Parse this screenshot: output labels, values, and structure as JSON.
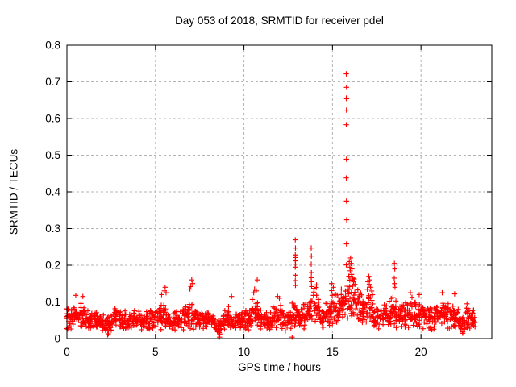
{
  "page": {
    "background": "#ffffff"
  },
  "chart_data": {
    "type": "scatter",
    "title": "Day 053 of 2018, SRMTID for receiver pdel",
    "xlabel": "GPS time / hours",
    "ylabel": "SRMTID / TECUs",
    "xlim": [
      0,
      24
    ],
    "ylim": [
      0,
      0.8
    ],
    "xticks": [
      "0",
      "5",
      "10",
      "15",
      "20"
    ],
    "xtick_values": [
      0,
      5,
      10,
      15,
      20
    ],
    "yticks": [
      "0",
      "0.1",
      "0.2",
      "0.3",
      "0.4",
      "0.5",
      "0.6",
      "0.7",
      "0.8"
    ],
    "ytick_values": [
      0,
      0.1,
      0.2,
      0.3,
      0.4,
      0.5,
      0.6,
      0.7,
      0.8
    ],
    "grid": true,
    "grid_style": "dashed",
    "legend": "none",
    "marker": {
      "symbol": "plus",
      "color": "#ff0000",
      "size": 7
    },
    "grid_color": "#b3b3b3",
    "border_color": "#000000",
    "series_name": "SRMTID",
    "x_data_range": [
      0,
      23.05
    ],
    "band_bins": [
      [
        0.0,
        0.055,
        0.035
      ],
      [
        0.2,
        0.055,
        0.035
      ],
      [
        0.4,
        0.06,
        0.04
      ],
      [
        0.6,
        0.06,
        0.035
      ],
      [
        0.8,
        0.065,
        0.045
      ],
      [
        1.0,
        0.055,
        0.035
      ],
      [
        1.2,
        0.05,
        0.03
      ],
      [
        1.4,
        0.05,
        0.03
      ],
      [
        1.6,
        0.05,
        0.03
      ],
      [
        1.8,
        0.05,
        0.03
      ],
      [
        2.0,
        0.045,
        0.03
      ],
      [
        2.2,
        0.035,
        0.03
      ],
      [
        2.4,
        0.04,
        0.03
      ],
      [
        2.6,
        0.05,
        0.028
      ],
      [
        2.8,
        0.055,
        0.03
      ],
      [
        3.0,
        0.05,
        0.028
      ],
      [
        3.2,
        0.05,
        0.028
      ],
      [
        3.4,
        0.048,
        0.028
      ],
      [
        3.6,
        0.05,
        0.028
      ],
      [
        3.8,
        0.052,
        0.03
      ],
      [
        4.0,
        0.05,
        0.028
      ],
      [
        4.2,
        0.048,
        0.028
      ],
      [
        4.4,
        0.05,
        0.028
      ],
      [
        4.6,
        0.05,
        0.03
      ],
      [
        4.8,
        0.052,
        0.03
      ],
      [
        5.0,
        0.055,
        0.032
      ],
      [
        5.2,
        0.06,
        0.038
      ],
      [
        5.4,
        0.07,
        0.05
      ],
      [
        5.6,
        0.065,
        0.045
      ],
      [
        5.8,
        0.05,
        0.03
      ],
      [
        6.0,
        0.048,
        0.03
      ],
      [
        6.2,
        0.05,
        0.03
      ],
      [
        6.4,
        0.05,
        0.03
      ],
      [
        6.6,
        0.055,
        0.033
      ],
      [
        6.8,
        0.06,
        0.04
      ],
      [
        7.0,
        0.075,
        0.055
      ],
      [
        7.2,
        0.065,
        0.045
      ],
      [
        7.4,
        0.05,
        0.03
      ],
      [
        7.6,
        0.05,
        0.03
      ],
      [
        7.8,
        0.048,
        0.03
      ],
      [
        8.0,
        0.045,
        0.03
      ],
      [
        8.2,
        0.042,
        0.03
      ],
      [
        8.4,
        0.035,
        0.028
      ],
      [
        8.6,
        0.035,
        0.03
      ],
      [
        8.8,
        0.04,
        0.03
      ],
      [
        9.0,
        0.05,
        0.03
      ],
      [
        9.2,
        0.055,
        0.033
      ],
      [
        9.4,
        0.05,
        0.03
      ],
      [
        9.6,
        0.05,
        0.03
      ],
      [
        9.8,
        0.05,
        0.03
      ],
      [
        10.0,
        0.052,
        0.032
      ],
      [
        10.2,
        0.055,
        0.035
      ],
      [
        10.4,
        0.065,
        0.045
      ],
      [
        10.6,
        0.075,
        0.05
      ],
      [
        10.8,
        0.065,
        0.045
      ],
      [
        11.0,
        0.05,
        0.032
      ],
      [
        11.2,
        0.05,
        0.03
      ],
      [
        11.4,
        0.05,
        0.03
      ],
      [
        11.6,
        0.055,
        0.033
      ],
      [
        11.8,
        0.065,
        0.042
      ],
      [
        12.0,
        0.06,
        0.04
      ],
      [
        12.2,
        0.05,
        0.032
      ],
      [
        12.4,
        0.05,
        0.03
      ],
      [
        12.6,
        0.055,
        0.035
      ],
      [
        12.8,
        0.07,
        0.05
      ],
      [
        13.0,
        0.06,
        0.038
      ],
      [
        13.2,
        0.06,
        0.035
      ],
      [
        13.4,
        0.065,
        0.04
      ],
      [
        13.6,
        0.075,
        0.05
      ],
      [
        13.8,
        0.09,
        0.06
      ],
      [
        14.0,
        0.09,
        0.06
      ],
      [
        14.2,
        0.075,
        0.05
      ],
      [
        14.4,
        0.055,
        0.035
      ],
      [
        14.6,
        0.06,
        0.04
      ],
      [
        14.8,
        0.07,
        0.045
      ],
      [
        15.0,
        0.08,
        0.055
      ],
      [
        15.2,
        0.08,
        0.05
      ],
      [
        15.4,
        0.085,
        0.05
      ],
      [
        15.6,
        0.09,
        0.05
      ],
      [
        15.8,
        0.1,
        0.07
      ],
      [
        16.0,
        0.12,
        0.08
      ],
      [
        16.2,
        0.11,
        0.07
      ],
      [
        16.4,
        0.09,
        0.055
      ],
      [
        16.6,
        0.085,
        0.05
      ],
      [
        16.8,
        0.09,
        0.055
      ],
      [
        17.0,
        0.095,
        0.06
      ],
      [
        17.2,
        0.085,
        0.055
      ],
      [
        17.4,
        0.065,
        0.042
      ],
      [
        17.6,
        0.055,
        0.035
      ],
      [
        17.8,
        0.055,
        0.035
      ],
      [
        18.0,
        0.06,
        0.038
      ],
      [
        18.2,
        0.065,
        0.04
      ],
      [
        18.4,
        0.08,
        0.05
      ],
      [
        18.6,
        0.075,
        0.048
      ],
      [
        18.8,
        0.06,
        0.04
      ],
      [
        19.0,
        0.06,
        0.038
      ],
      [
        19.2,
        0.065,
        0.04
      ],
      [
        19.4,
        0.07,
        0.045
      ],
      [
        19.6,
        0.065,
        0.042
      ],
      [
        19.8,
        0.068,
        0.045
      ],
      [
        20.0,
        0.065,
        0.042
      ],
      [
        20.2,
        0.06,
        0.04
      ],
      [
        20.4,
        0.055,
        0.035
      ],
      [
        20.6,
        0.055,
        0.035
      ],
      [
        20.8,
        0.06,
        0.038
      ],
      [
        21.0,
        0.06,
        0.04
      ],
      [
        21.2,
        0.07,
        0.048
      ],
      [
        21.4,
        0.065,
        0.042
      ],
      [
        21.6,
        0.062,
        0.04
      ],
      [
        21.8,
        0.065,
        0.045
      ],
      [
        22.0,
        0.06,
        0.04
      ],
      [
        22.2,
        0.045,
        0.03
      ],
      [
        22.4,
        0.04,
        0.03
      ],
      [
        22.6,
        0.055,
        0.038
      ],
      [
        22.8,
        0.06,
        0.04
      ],
      [
        23.0,
        0.055,
        0.035
      ]
    ],
    "outliers": [
      [
        15.78,
        0.722
      ],
      [
        15.79,
        0.685
      ],
      [
        15.78,
        0.656
      ],
      [
        15.8,
        0.654
      ],
      [
        15.79,
        0.623
      ],
      [
        15.78,
        0.583
      ],
      [
        15.79,
        0.489
      ],
      [
        15.78,
        0.438
      ],
      [
        15.79,
        0.375
      ],
      [
        15.8,
        0.324
      ],
      [
        15.79,
        0.258
      ],
      [
        15.78,
        0.201
      ],
      [
        12.9,
        0.269
      ],
      [
        12.91,
        0.247
      ],
      [
        12.9,
        0.228
      ],
      [
        12.91,
        0.221
      ],
      [
        12.9,
        0.212
      ],
      [
        12.91,
        0.203
      ],
      [
        12.9,
        0.195
      ],
      [
        12.91,
        0.173
      ],
      [
        12.9,
        0.158
      ],
      [
        12.91,
        0.145
      ],
      [
        13.8,
        0.247
      ],
      [
        13.81,
        0.225
      ],
      [
        13.8,
        0.203
      ],
      [
        13.81,
        0.18
      ],
      [
        13.8,
        0.166
      ],
      [
        13.81,
        0.155
      ],
      [
        13.82,
        0.142
      ],
      [
        16.02,
        0.22
      ],
      [
        15.95,
        0.21
      ],
      [
        16.05,
        0.205
      ],
      [
        15.98,
        0.195
      ],
      [
        16.1,
        0.19
      ],
      [
        16.0,
        0.185
      ],
      [
        16.08,
        0.175
      ],
      [
        16.15,
        0.165
      ],
      [
        17.05,
        0.17
      ],
      [
        17.1,
        0.16
      ],
      [
        17.0,
        0.155
      ],
      [
        17.08,
        0.148
      ],
      [
        17.15,
        0.14
      ],
      [
        18.5,
        0.205
      ],
      [
        18.52,
        0.19
      ],
      [
        18.49,
        0.165
      ],
      [
        18.51,
        0.15
      ],
      [
        18.53,
        0.14
      ],
      [
        7.05,
        0.16
      ],
      [
        7.1,
        0.15
      ],
      [
        7.0,
        0.142
      ],
      [
        6.95,
        0.135
      ],
      [
        5.55,
        0.14
      ],
      [
        5.5,
        0.13
      ],
      [
        5.6,
        0.125
      ],
      [
        5.35,
        0.12
      ],
      [
        10.6,
        0.135
      ],
      [
        10.7,
        0.13
      ],
      [
        10.55,
        0.125
      ],
      [
        10.75,
        0.16
      ],
      [
        0.9,
        0.115
      ],
      [
        0.5,
        0.118
      ],
      [
        9.3,
        0.115
      ],
      [
        11.9,
        0.115
      ],
      [
        12.0,
        0.11
      ],
      [
        14.95,
        0.15
      ],
      [
        15.05,
        0.14
      ],
      [
        15.5,
        0.135
      ],
      [
        19.4,
        0.125
      ],
      [
        19.9,
        0.12
      ],
      [
        21.2,
        0.125
      ],
      [
        21.9,
        0.122
      ],
      [
        22.6,
        0.095
      ],
      [
        22.95,
        0.05
      ],
      [
        8.62,
        0.004
      ],
      [
        12.72,
        0.004
      ],
      [
        2.3,
        0.01
      ],
      [
        2.32,
        0.022
      ],
      [
        22.35,
        0.015
      ]
    ]
  },
  "layout_text": {}
}
